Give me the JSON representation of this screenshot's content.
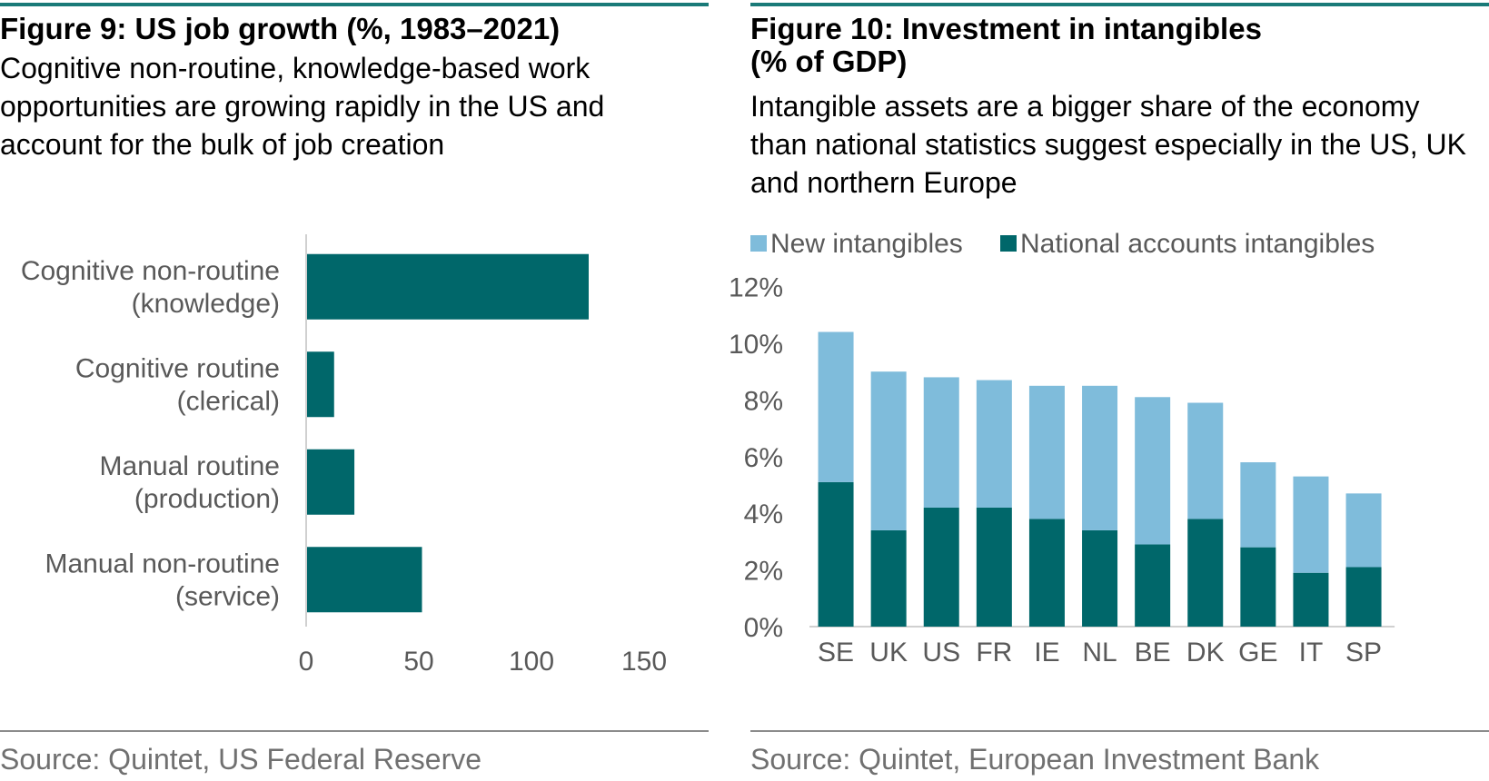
{
  "colors": {
    "accent_rule": "#1a7a78",
    "dark_teal": "#00676a",
    "light_blue": "#7fbcdb",
    "source_grey": "#707070",
    "axis_grey": "#595959"
  },
  "figure9": {
    "title": "Figure 9: US job growth (%, 1983–2021)",
    "subtitle": "Cognitive non-routine, knowledge-based work opportunities are growing rapidly in the US and account for the bulk of job creation",
    "source": "Source: Quintet, US Federal Reserve"
  },
  "figure10": {
    "title": "Figure 10: Investment in intangibles\n(% of GDP)",
    "subtitle": "Intangible assets are a bigger share of the economy than national statistics suggest especially in the US, UK and northern Europe",
    "source": "Source: Quintet, European Investment Bank"
  },
  "chart_data": [
    {
      "type": "bar",
      "orientation": "horizontal",
      "categories": [
        [
          "Cognitive non-routine",
          "(knowledge)"
        ],
        [
          "Cognitive routine",
          "(clerical)"
        ],
        [
          "Manual routine",
          "(production)"
        ],
        [
          "Manual non-routine",
          "(service)"
        ]
      ],
      "values": [
        125,
        12,
        21,
        51
      ],
      "xlim": [
        0,
        150
      ],
      "xticks": [
        0,
        50,
        100,
        150
      ],
      "color": "#00676a"
    },
    {
      "type": "bar",
      "stacked": true,
      "categories": [
        "SE",
        "UK",
        "US",
        "FR",
        "IE",
        "NL",
        "BE",
        "DK",
        "GE",
        "IT",
        "SP"
      ],
      "series": [
        {
          "name": "National accounts intangibles",
          "color": "#00676a",
          "values": [
            5.1,
            3.4,
            4.2,
            4.2,
            3.8,
            3.4,
            2.9,
            3.8,
            2.8,
            1.9,
            2.1
          ]
        },
        {
          "name": "New intangibles",
          "color": "#7fbcdb",
          "values": [
            5.3,
            5.6,
            4.6,
            4.5,
            4.7,
            5.1,
            5.2,
            4.1,
            3.0,
            3.4,
            2.6
          ]
        }
      ],
      "legend_order": [
        "New intangibles",
        "National accounts intangibles"
      ],
      "ylim": [
        0,
        12
      ],
      "yticks": [
        "0%",
        "2%",
        "4%",
        "6%",
        "8%",
        "10%",
        "12%"
      ],
      "legend": "top"
    }
  ]
}
